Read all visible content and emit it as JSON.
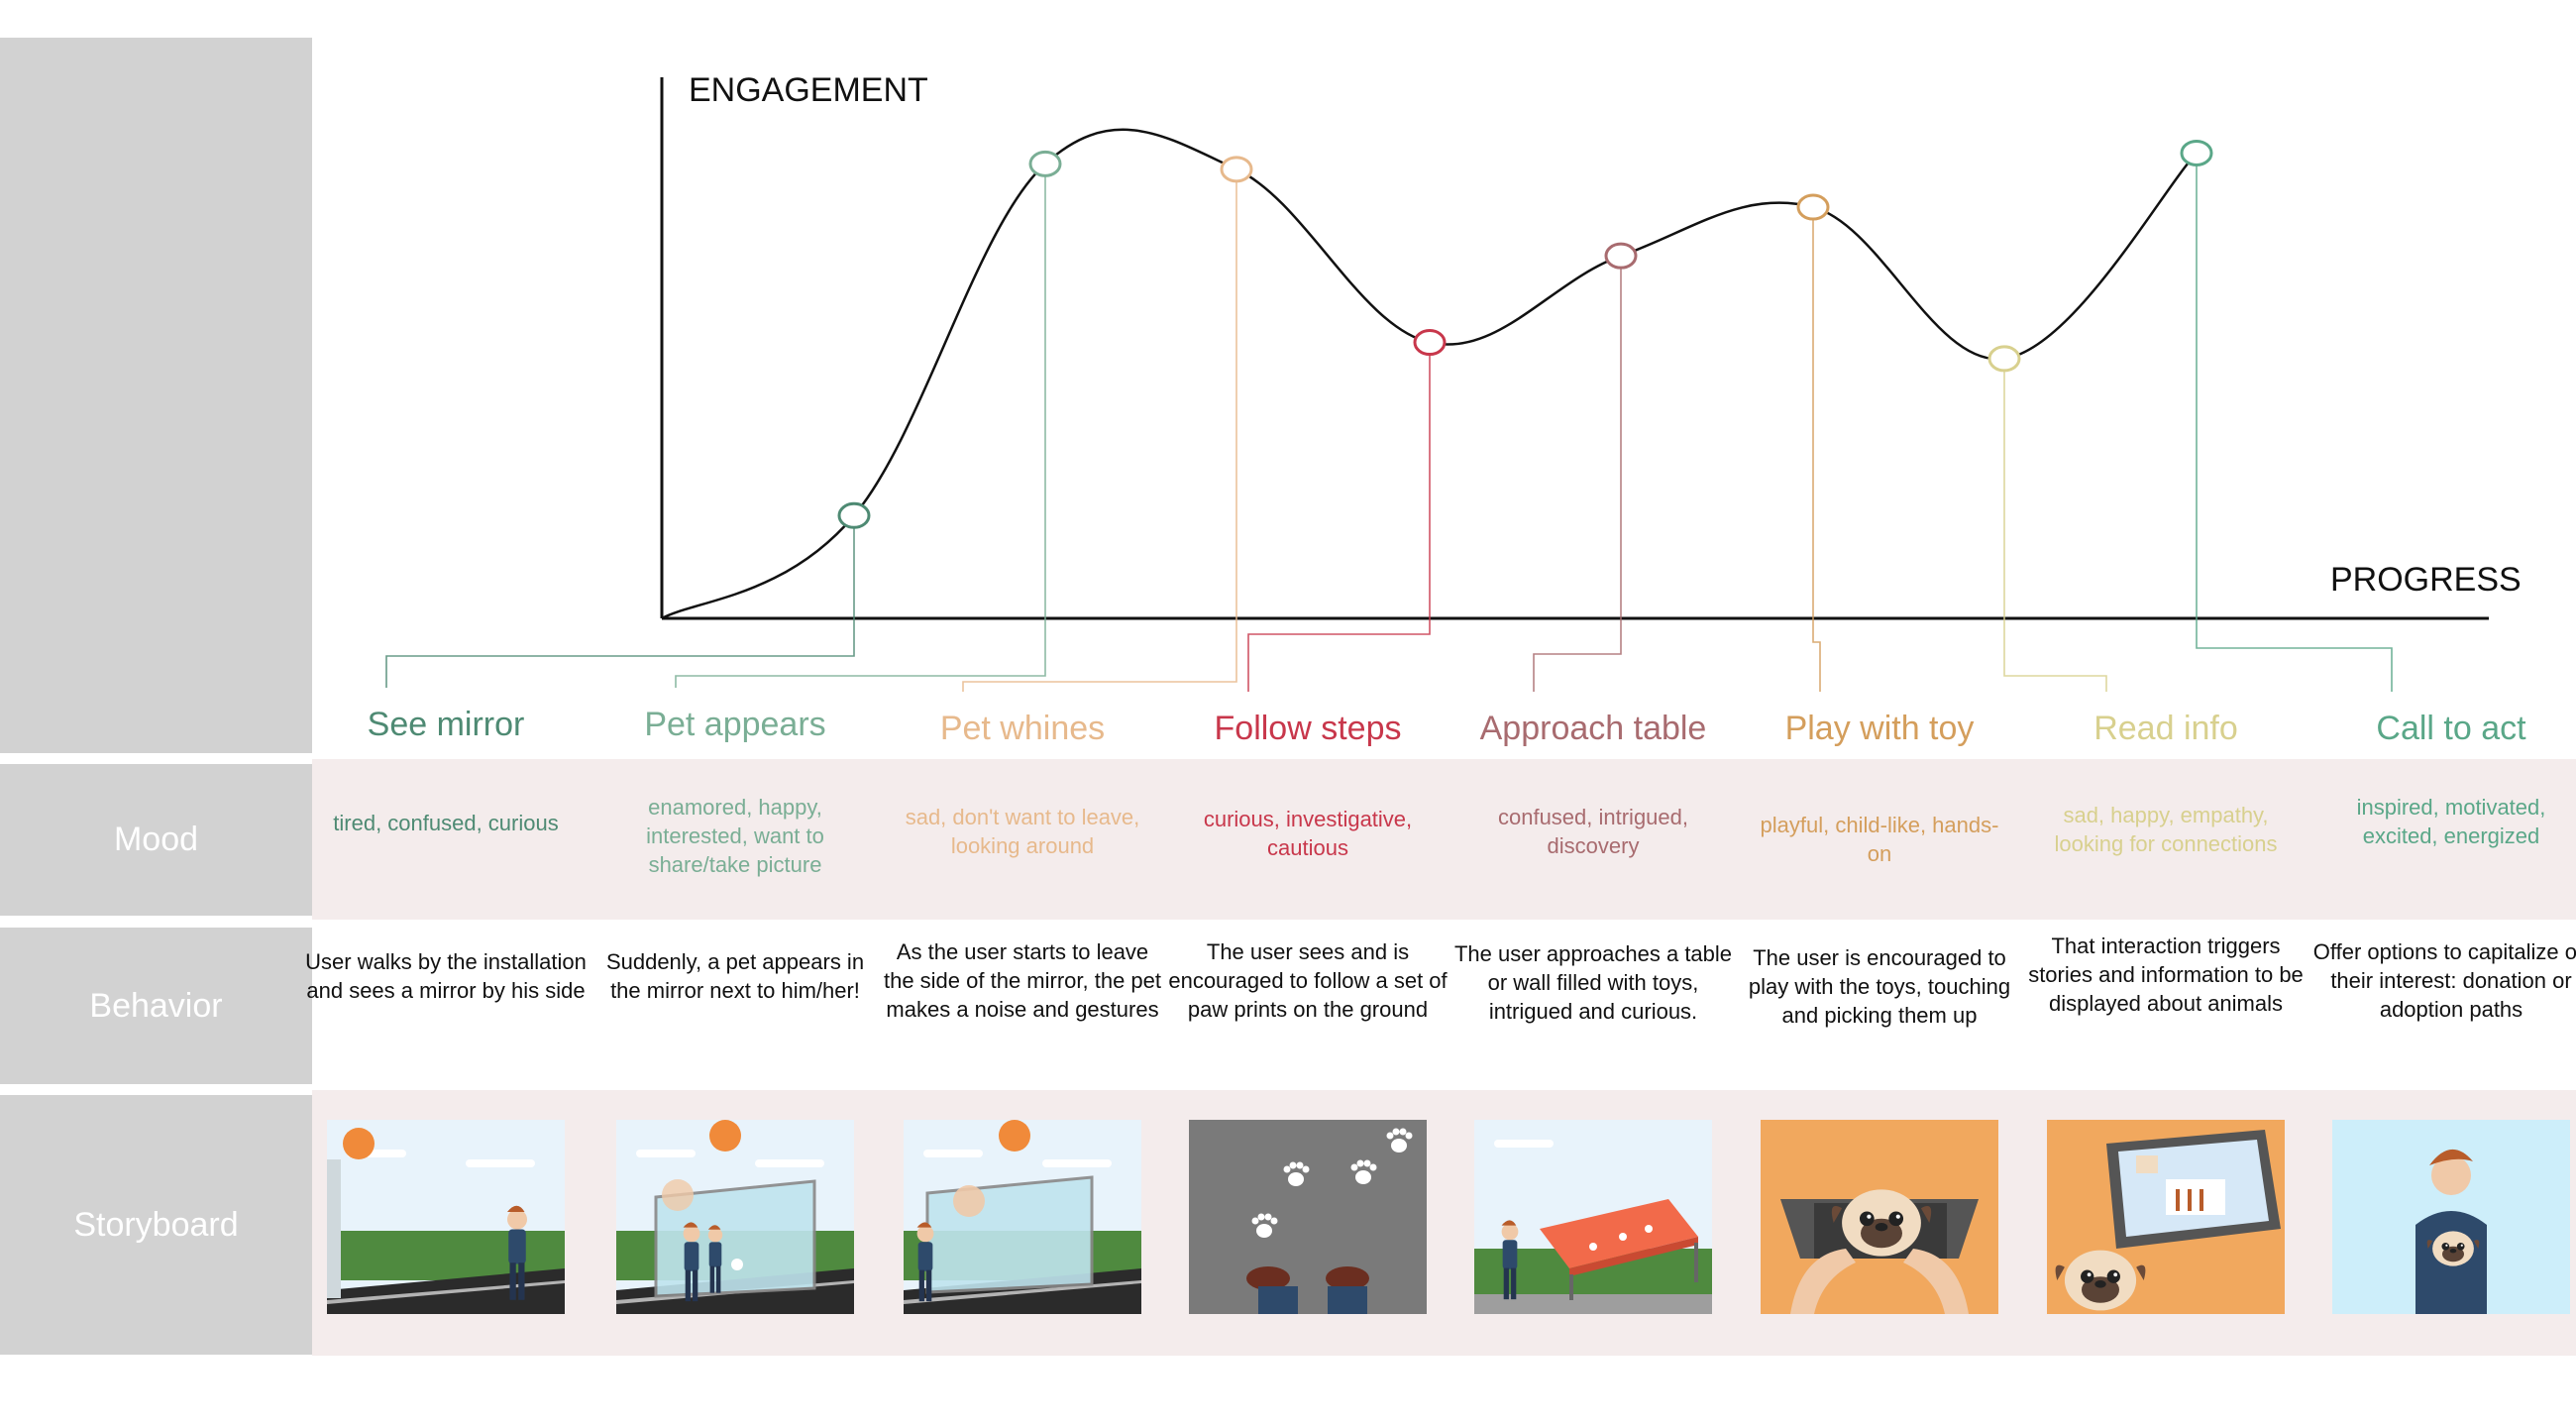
{
  "rows": {
    "mood": "Mood",
    "behavior": "Behavior",
    "storyboard": "Storyboard"
  },
  "axes": {
    "y_label": "ENGAGEMENT",
    "x_label": "PROGRESS"
  },
  "chart_data": {
    "type": "line",
    "ylabel": "ENGAGEMENT",
    "xlabel": "PROGRESS",
    "x": [
      "See mirror",
      "Pet appears",
      "Pet whines",
      "Follow steps",
      "Approach table",
      "Play with toy",
      "Read info",
      "Call to act"
    ],
    "values": [
      0.19,
      0.84,
      0.83,
      0.51,
      0.67,
      0.76,
      0.48,
      0.86
    ]
  },
  "stages": [
    {
      "title": "See mirror",
      "color": "#4e8a73",
      "mood": "tired, confused, curious",
      "behavior": "User walks by the installation and sees a mirror by his side",
      "scene": "mirror"
    },
    {
      "title": "Pet appears",
      "color": "#7aae95",
      "mood": "enamored, happy, interested, want to share/take picture",
      "behavior": "Suddenly, a pet appears in the mirror next to him/her!",
      "scene": "pet-in-mirror"
    },
    {
      "title": "Pet whines",
      "color": "#e7b98c",
      "mood": "sad, don't want to leave, looking around",
      "behavior": "As the user starts to leave the side of the mirror, the pet makes a noise and gestures",
      "scene": "leaving-mirror"
    },
    {
      "title": "Follow steps",
      "color": "#c8374b",
      "mood": "curious, investigative, cautious",
      "behavior": "The user sees and is encouraged to follow a set of paw prints on the ground",
      "scene": "paw-prints"
    },
    {
      "title": "Approach table",
      "color": "#a86b6f",
      "mood": "confused, intrigued, discovery",
      "behavior": "The user approaches a table or wall filled with toys, intrigued and curious.",
      "scene": "toy-table"
    },
    {
      "title": "Play with toy",
      "color": "#d49e5c",
      "mood": "playful, child-like, hands-on",
      "behavior": "The user is encouraged to play with the toys, touching and picking them up",
      "scene": "playing-pug"
    },
    {
      "title": "Read info",
      "color": "#d8d08e",
      "mood": "sad, happy, empathy, looking for connections",
      "behavior": "That interaction triggers stories and information to be displayed about animals",
      "scene": "tablet-pug"
    },
    {
      "title": "Call to act",
      "color": "#5aa788",
      "mood": "inspired, motivated, excited, energized",
      "behavior": "Offer options to capitalize on their interest: donation or adoption paths",
      "scene": "man-with-pug"
    }
  ],
  "colors": {
    "side_panel": "#d2d2d2",
    "band": "#f4ecec"
  }
}
